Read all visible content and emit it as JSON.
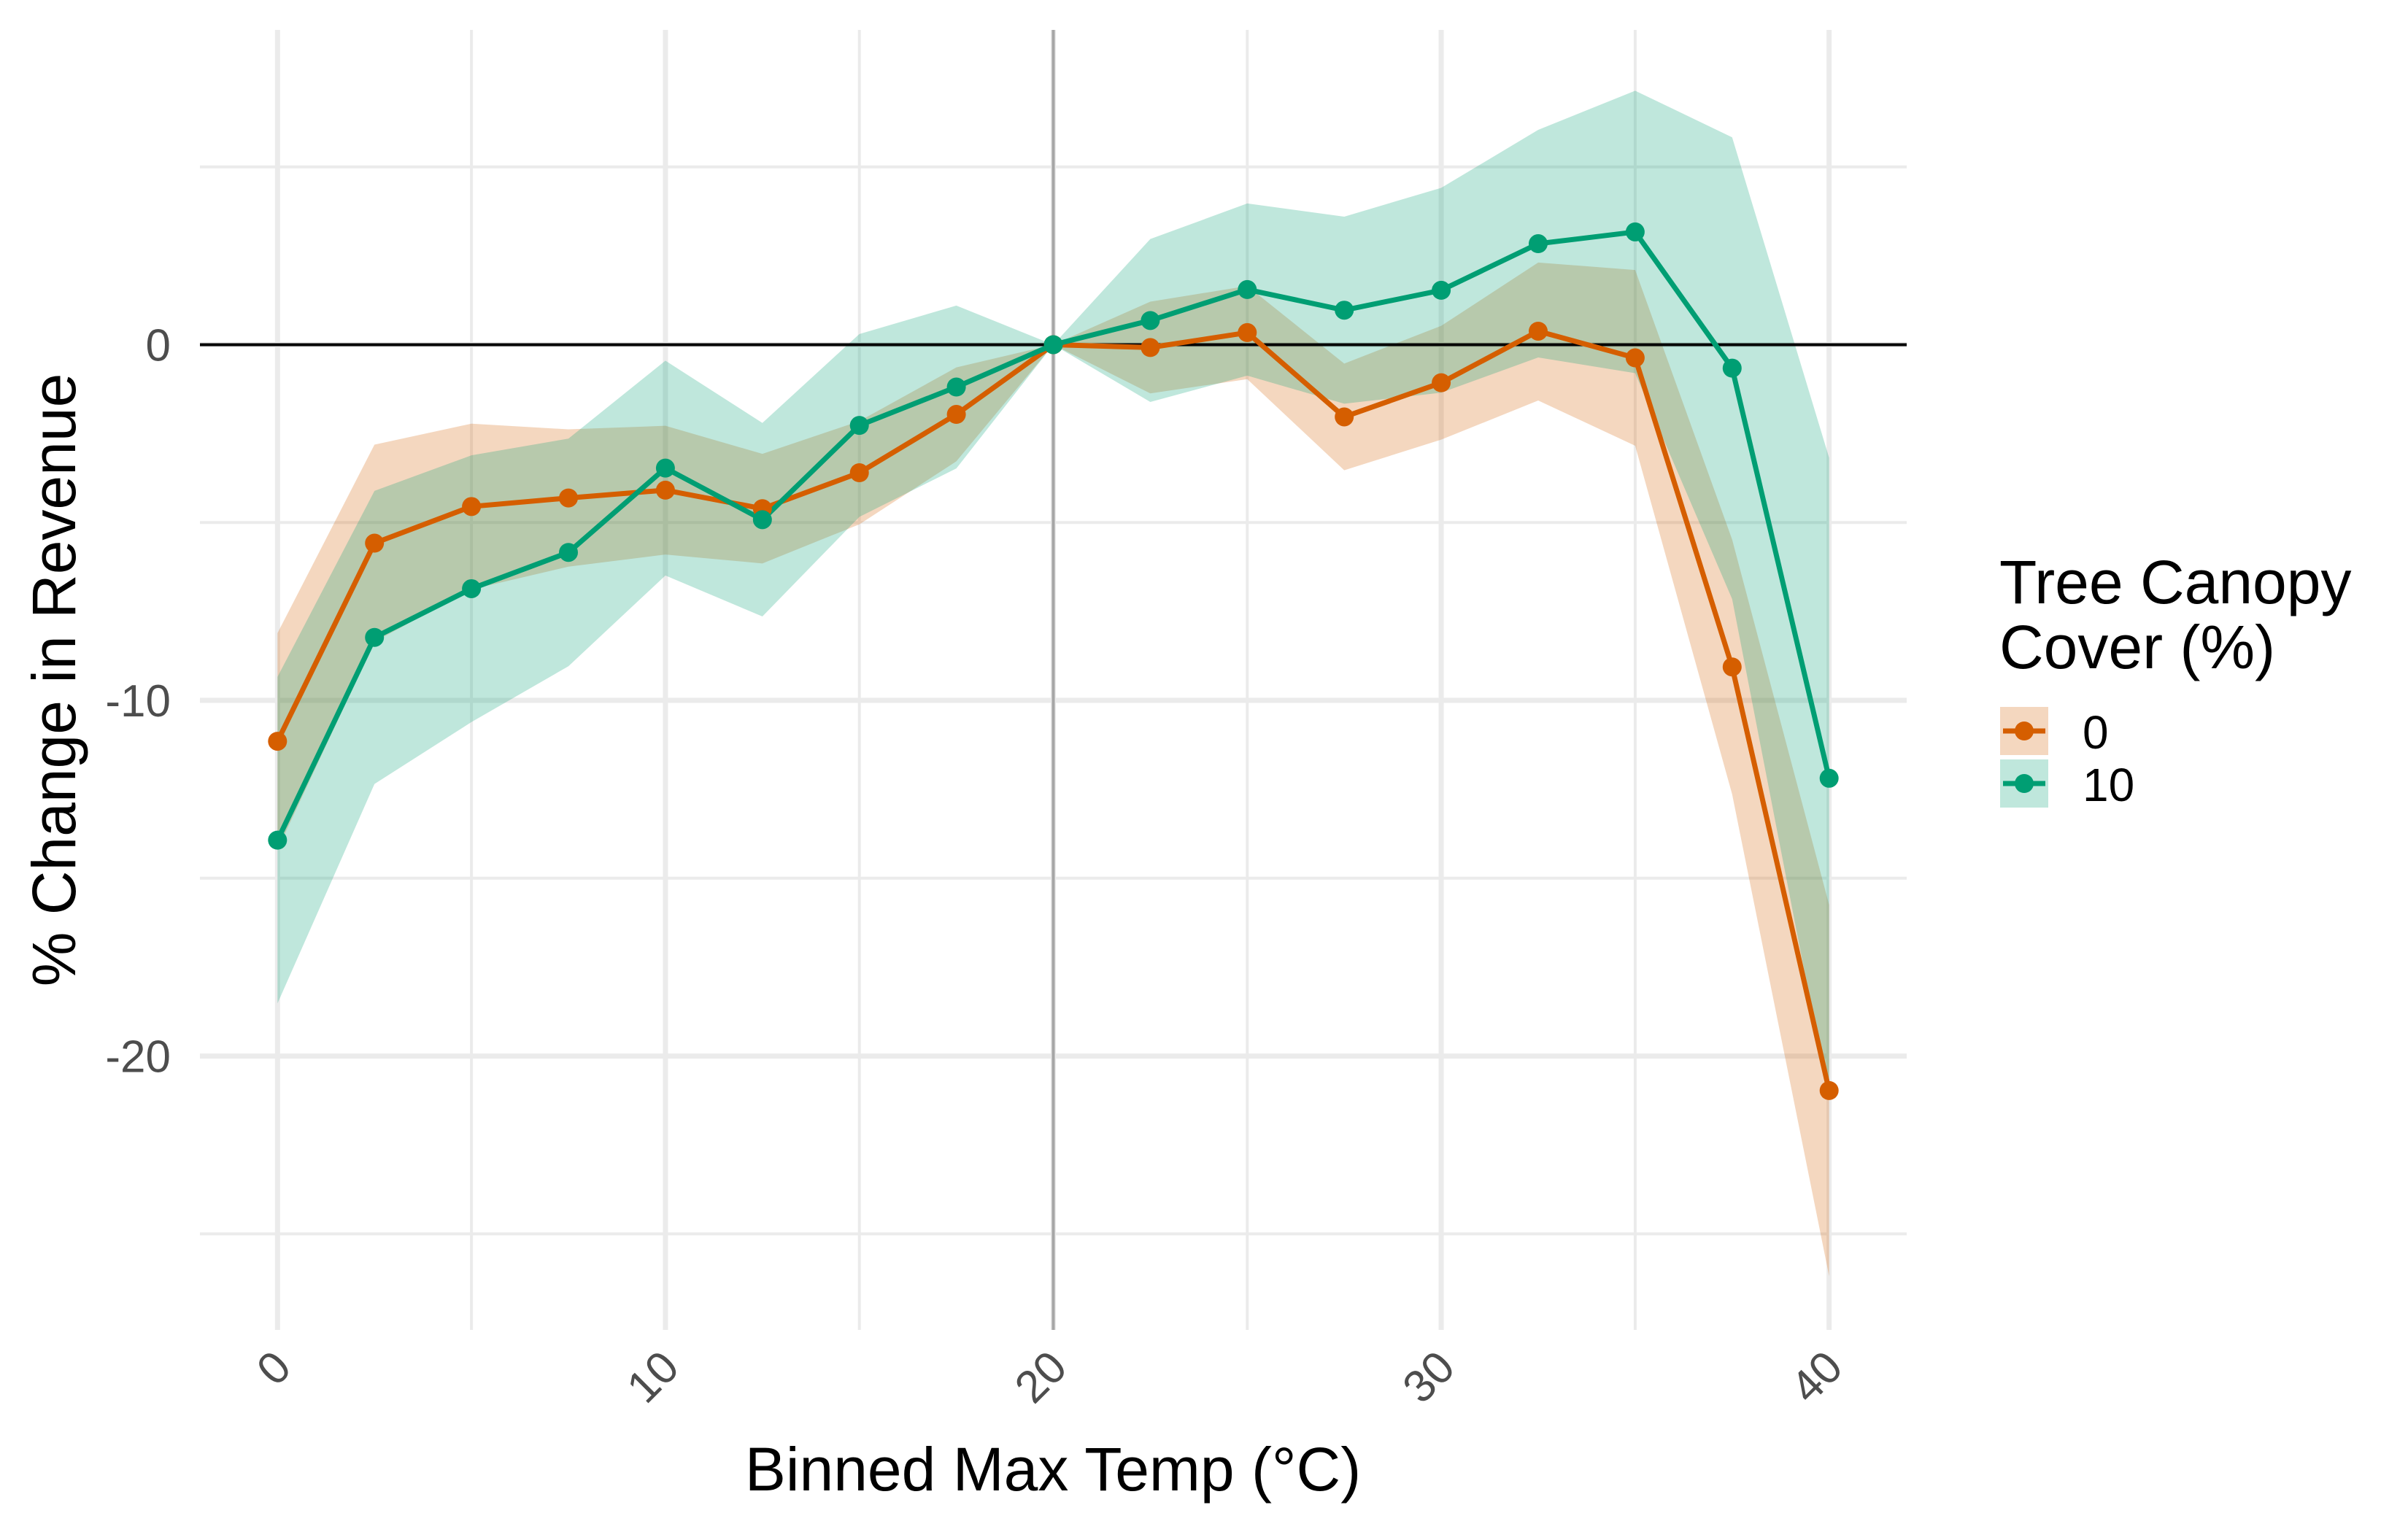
{
  "chart_data": {
    "type": "line",
    "title": "",
    "xlabel": "Binned Max Temp (°C)",
    "ylabel": "% Change in Revenue",
    "xlim": [
      -2,
      42
    ],
    "ylim": [
      -27.7,
      8.85
    ],
    "x_ticks": [
      0,
      10,
      20,
      30,
      40
    ],
    "x_tick_labels": [
      "0",
      "10",
      "20",
      "30",
      "40"
    ],
    "x_minor_ticks": [
      5,
      15,
      25,
      35
    ],
    "y_ticks": [
      0,
      -10,
      -20
    ],
    "y_tick_labels": [
      "0",
      "-10",
      "-20"
    ],
    "y_minor_ticks": [
      5,
      -5,
      -15,
      -25
    ],
    "grid": true,
    "reference_lines": {
      "hline": 0,
      "vline": 20
    },
    "x": [
      0,
      2.5,
      5,
      7.5,
      10,
      12.5,
      15,
      17.5,
      20,
      22.5,
      25,
      27.5,
      30,
      32.5,
      35,
      37.5,
      40
    ],
    "legend": {
      "title_lines": [
        "Tree Canopy",
        "Cover (%)"
      ],
      "placement": "right"
    },
    "series": [
      {
        "name": "0",
        "color": "#D55E00",
        "fill": "#F3D6C0",
        "values": [
          -11.15,
          -5.58,
          -4.55,
          -4.31,
          -4.09,
          -4.61,
          -3.6,
          -1.96,
          0,
          -0.08,
          0.34,
          -2.03,
          -1.07,
          0.38,
          -0.37,
          -9.06,
          -20.97
        ],
        "upper": [
          -8.11,
          -2.81,
          -2.22,
          -2.38,
          -2.28,
          -3.07,
          -2.15,
          -0.64,
          0,
          1.21,
          1.65,
          -0.53,
          0.53,
          2.31,
          2.1,
          -5.48,
          -15.75
        ],
        "lower": [
          -14.19,
          -8.35,
          -6.88,
          -6.24,
          -5.9,
          -6.15,
          -5.05,
          -3.28,
          0,
          -1.37,
          -0.97,
          -3.53,
          -2.67,
          -1.57,
          -2.84,
          -12.64,
          -26.19
        ]
      },
      {
        "name": "10",
        "color": "#009E73",
        "fill": "#BFE7DC",
        "values": [
          -13.93,
          -8.23,
          -6.86,
          -5.84,
          -3.47,
          -4.92,
          -2.27,
          -1.19,
          0,
          0.68,
          1.55,
          0.97,
          1.53,
          2.84,
          3.17,
          -0.66,
          -12.19
        ],
        "upper": [
          -9.34,
          -4.11,
          -3.11,
          -2.64,
          -0.45,
          -2.2,
          0.3,
          1.1,
          0,
          2.97,
          3.97,
          3.6,
          4.41,
          6.04,
          7.14,
          5.83,
          -3.18
        ],
        "lower": [
          -18.52,
          -12.35,
          -10.61,
          -9.04,
          -6.49,
          -7.64,
          -4.84,
          -3.48,
          0,
          -1.61,
          -0.87,
          -1.66,
          -1.35,
          -0.36,
          -0.8,
          -7.15,
          -21.2
        ]
      }
    ]
  }
}
